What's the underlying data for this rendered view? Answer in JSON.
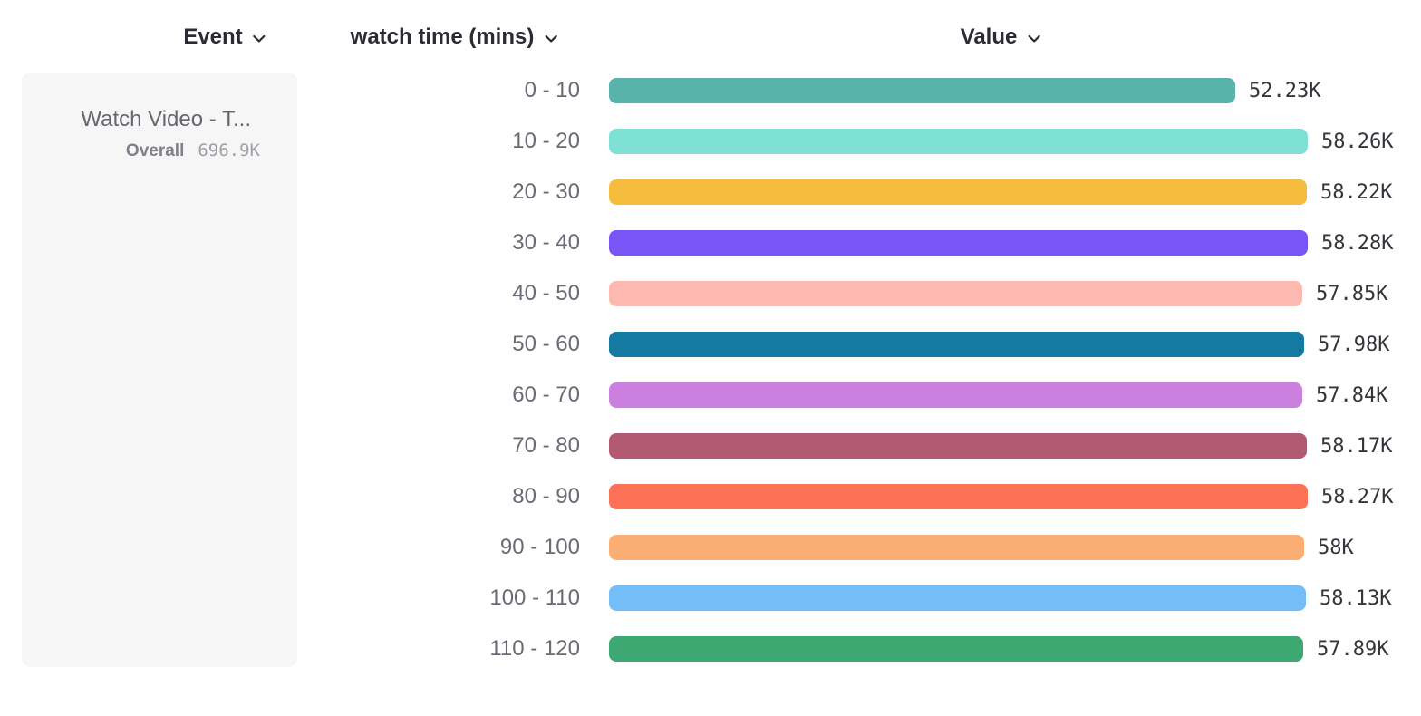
{
  "headers": {
    "event": "Event",
    "breakdown": "watch time (mins)",
    "value": "Value"
  },
  "event_card": {
    "title": "Watch Video - T...",
    "overall_label": "Overall",
    "overall_value": "696.9K"
  },
  "chart_data": {
    "type": "bar",
    "orientation": "horizontal",
    "title": "",
    "xlabel": "Value",
    "ylabel": "watch time (mins)",
    "categories": [
      "0 - 10",
      "10 - 20",
      "20 - 30",
      "30 - 40",
      "40 - 50",
      "50 - 60",
      "60 - 70",
      "70 - 80",
      "80 - 90",
      "90 - 100",
      "100 - 110",
      "110 - 120"
    ],
    "values": [
      52230,
      58260,
      58220,
      58280,
      57850,
      57980,
      57840,
      58170,
      58270,
      58000,
      58130,
      57890
    ],
    "value_labels": [
      "52.23K",
      "58.26K",
      "58.22K",
      "58.28K",
      "57.85K",
      "57.98K",
      "57.84K",
      "58.17K",
      "58.27K",
      "58K",
      "58.13K",
      "57.89K"
    ],
    "colors": [
      "#58B3AB",
      "#7FE1D4",
      "#F6BC3E",
      "#7955F7",
      "#FDB9AF",
      "#147AA1",
      "#CB80E0",
      "#B25A71",
      "#FC7256",
      "#FBAE74",
      "#74BDF7",
      "#3EA873"
    ],
    "xlim": [
      0,
      58280
    ],
    "grid": false,
    "legend": false
  }
}
